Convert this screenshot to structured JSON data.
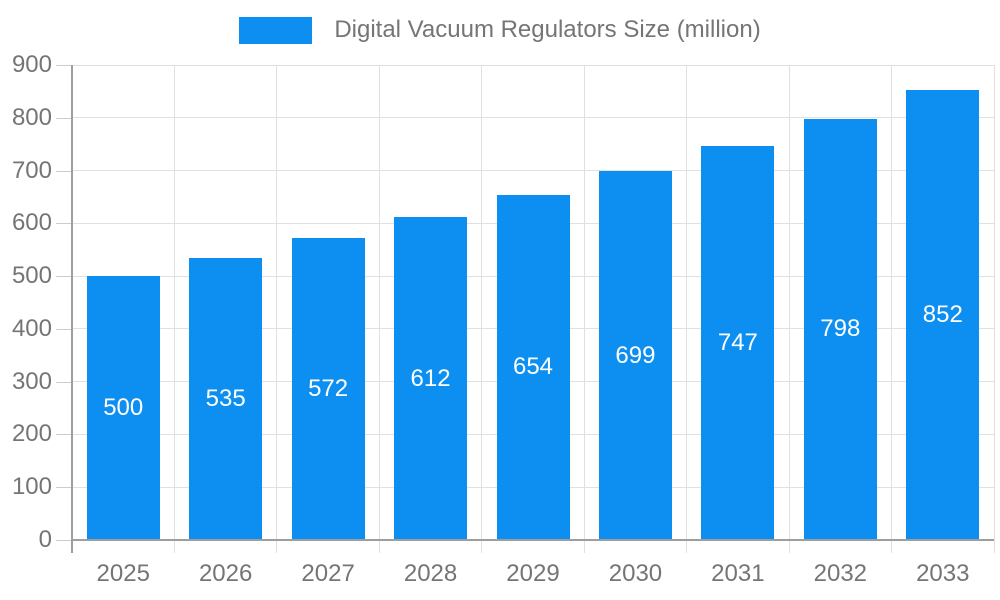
{
  "legend": {
    "label": "Digital Vacuum Regulators Size (million)"
  },
  "colors": {
    "bar": "#0d8ff2",
    "axis_text": "#757575",
    "grid": "#e0e0e0",
    "axis_line": "#9e9e9e",
    "tick": "#cccccc",
    "value_label": "#ffffff",
    "background": "#ffffff"
  },
  "chart_data": {
    "type": "bar",
    "title": "Digital Vacuum Regulators Size (million)",
    "categories": [
      "2025",
      "2026",
      "2027",
      "2028",
      "2029",
      "2030",
      "2031",
      "2032",
      "2033"
    ],
    "values": [
      500,
      535,
      572,
      612,
      654,
      699,
      747,
      798,
      852
    ],
    "xlabel": "",
    "ylabel": "",
    "ylim": [
      0,
      900
    ],
    "ytick_step": 100,
    "yticks": [
      "0",
      "100",
      "200",
      "300",
      "400",
      "500",
      "600",
      "700",
      "800",
      "900"
    ],
    "grid": true,
    "legend_position": "top",
    "value_label_position": "inside-center"
  }
}
